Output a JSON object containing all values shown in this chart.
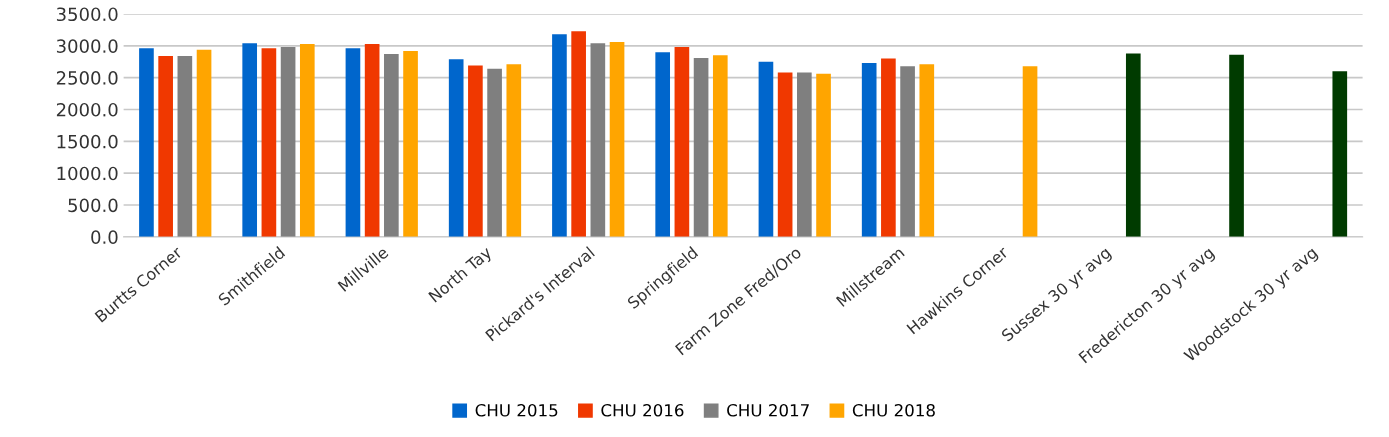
{
  "chart_data": {
    "type": "bar",
    "categories": [
      "Burtts Corner",
      "Smithfield",
      "Millville",
      "North Tay",
      "Pickard's Interval",
      "Springfield",
      "Farm Zone Fred/Oro",
      "Millstream",
      "Hawkins Corner",
      "Sussex 30 yr avg",
      "Fredericton 30 yr avg",
      "Woodstock 30 yr avg"
    ],
    "series": [
      {
        "name": "CHU 2015",
        "color": "#0066cc",
        "values": [
          2960,
          3040,
          2960,
          2790,
          3180,
          2900,
          2750,
          2730,
          null,
          null,
          null,
          null
        ]
      },
      {
        "name": "CHU 2016",
        "color": "#f03800",
        "values": [
          2840,
          2960,
          3030,
          2690,
          3230,
          2980,
          2580,
          2800,
          null,
          null,
          null,
          null
        ]
      },
      {
        "name": "CHU 2017",
        "color": "#7f7f7f",
        "values": [
          2840,
          2980,
          2870,
          2640,
          3040,
          2810,
          2580,
          2680,
          null,
          null,
          null,
          null
        ]
      },
      {
        "name": "CHU 2018",
        "color": "#ffa500",
        "colors": [
          "#ffa500",
          "#ffa500",
          "#ffa500",
          "#ffa500",
          "#ffa500",
          "#ffa500",
          "#ffa500",
          "#ffa500",
          "#ffa500",
          "#003b00",
          "#003b00",
          "#003b00"
        ],
        "values": [
          2940,
          3030,
          2920,
          2710,
          3060,
          2850,
          2560,
          2710,
          2680,
          2880,
          2860,
          2600
        ]
      }
    ],
    "ylim": [
      0,
      3500
    ],
    "yticks": [
      {
        "value": 0,
        "label": "0.0"
      },
      {
        "value": 500,
        "label": "500.0"
      },
      {
        "value": 1000,
        "label": "1000.0"
      },
      {
        "value": 1500,
        "label": "1500.0"
      },
      {
        "value": 2000,
        "label": "2000.0"
      },
      {
        "value": 2500,
        "label": "2500.0"
      },
      {
        "value": 3000,
        "label": "3000.0"
      },
      {
        "value": 3500,
        "label": "3500.0"
      }
    ],
    "grid": "y",
    "legend": "bottom"
  }
}
